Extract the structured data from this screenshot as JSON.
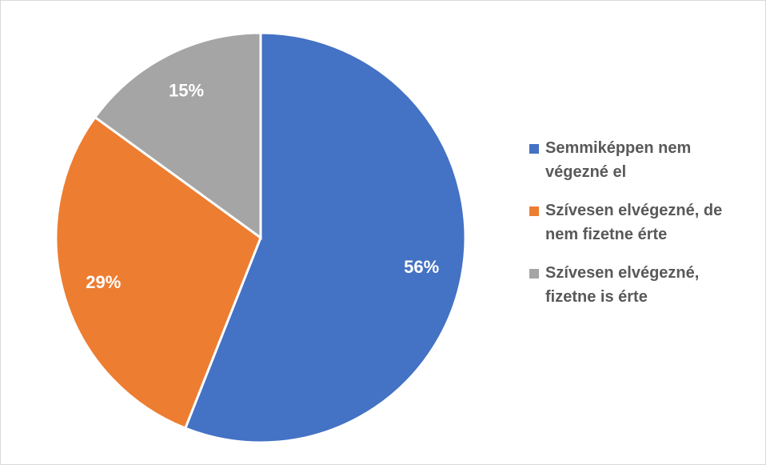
{
  "chart_data": {
    "type": "pie",
    "categories": [
      "Semmiképpen nem végezné el",
      "Szívesen elvégezné, de nem fizetne érte",
      "Szívesen elvégezné, fizetne is érte"
    ],
    "values": [
      56,
      29,
      15
    ],
    "value_labels": [
      "56%",
      "29%",
      "15%"
    ],
    "colors": [
      "#4472c4",
      "#ed7d31",
      "#a5a5a5"
    ],
    "legend": "right"
  }
}
